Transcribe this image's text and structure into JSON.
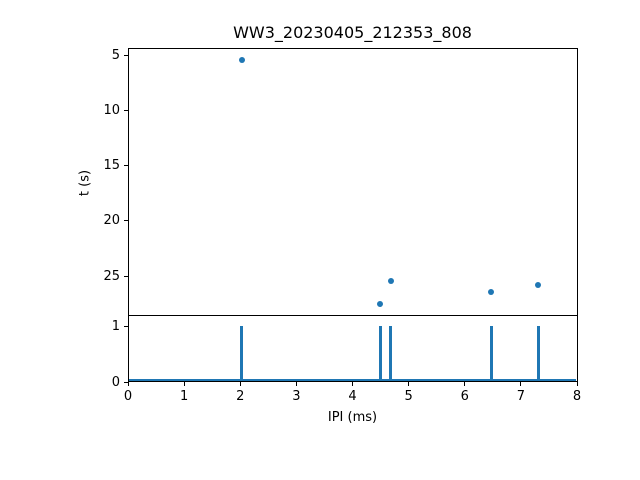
{
  "figure": {
    "title": "WW3_20230405_212353_808",
    "background_color": "#ffffff",
    "axis_color": "#000000",
    "accent_color": "#1f77b4"
  },
  "chart_data": [
    {
      "type": "scatter",
      "title": "WW3_20230405_212353_808",
      "xlabel": "IPI (ms)",
      "ylabel": "t (s)",
      "x": [
        2.03,
        4.49,
        4.68,
        6.47,
        7.31
      ],
      "y": [
        5.4,
        27.5,
        25.4,
        26.4,
        25.8
      ],
      "xlim": [
        0,
        8
      ],
      "ylim": [
        28.6,
        4.4
      ],
      "y_axis_inverted": true,
      "xticks": [
        0,
        1,
        2,
        3,
        4,
        5,
        6,
        7,
        8
      ],
      "yticks": [
        5,
        10,
        15,
        20,
        25
      ],
      "x_tick_labels_visible": false,
      "grid": false,
      "legend": "none",
      "marker": "circle",
      "marker_color": "#1f77b4"
    },
    {
      "type": "bar",
      "title": "",
      "xlabel": "IPI (ms)",
      "ylabel": "",
      "x": [
        2.03,
        4.49,
        4.68,
        6.47,
        7.31
      ],
      "values": [
        1,
        1,
        1,
        1,
        1
      ],
      "xlim": [
        0,
        8
      ],
      "ylim": [
        0,
        1.18
      ],
      "xticks": [
        0,
        1,
        2,
        3,
        4,
        5,
        6,
        7,
        8
      ],
      "yticks": [
        0,
        1
      ],
      "baseline": 0,
      "grid": false,
      "legend": "none",
      "bar_color": "#1f77b4"
    }
  ]
}
